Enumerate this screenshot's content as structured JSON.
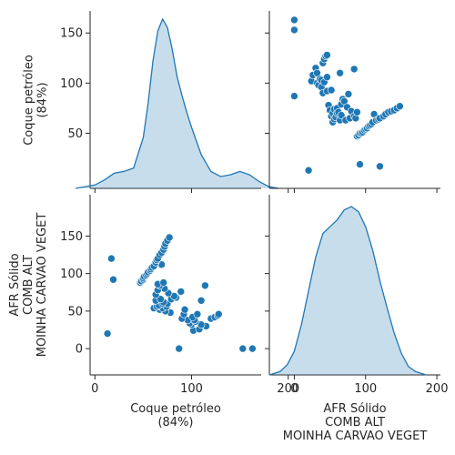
{
  "chart_data": {
    "type": "scatter",
    "kind": "pairplot",
    "variables": [
      "Coque petróleo\n(84%)",
      "AFR Sólido\nCOMB ALT\nMOINHA CARVAO VEGET"
    ],
    "axis_range": {
      "Coque petróleo\n(84%)": [
        -5,
        172
      ],
      "AFR Sólido\nCOMB ALT\nMOINHA CARVAO VEGET": [
        -35,
        205
      ]
    },
    "ticks": {
      "Coque petróleo\n(84%)": [
        0,
        50,
        100,
        150
      ],
      "AFR Sólido\nCOMB ALT\nMOINHA CARVAO VEGET": [
        0,
        100,
        200
      ]
    },
    "ticks_y": {
      "Coque petróleo\n(84%)": [
        50,
        100,
        150
      ],
      "AFR Sólido\nCOMB ALT\nMOINHA CARVAO VEGET": [
        0,
        50,
        100,
        150
      ]
    },
    "diagonal_kde": {
      "Coque petróleo\n(84%)": {
        "x": [
          -20,
          0,
          10,
          20,
          30,
          40,
          50,
          55,
          60,
          65,
          70,
          75,
          80,
          85,
          90,
          95,
          100,
          110,
          120,
          130,
          140,
          150,
          160,
          170,
          180,
          190
        ],
        "density_rel": [
          0.0,
          0.02,
          0.05,
          0.09,
          0.1,
          0.12,
          0.3,
          0.5,
          0.75,
          0.93,
          1.0,
          0.95,
          0.82,
          0.66,
          0.55,
          0.45,
          0.36,
          0.2,
          0.1,
          0.07,
          0.08,
          0.1,
          0.08,
          0.04,
          0.01,
          0.0
        ]
      },
      "AFR Sólido\nCOMB ALT\nMOINHA CARVAO VEGET": {
        "x": [
          -35,
          -20,
          -10,
          0,
          10,
          20,
          30,
          40,
          50,
          60,
          70,
          80,
          90,
          100,
          110,
          120,
          130,
          140,
          150,
          160,
          170,
          185
        ],
        "density_rel": [
          0.0,
          0.02,
          0.06,
          0.14,
          0.3,
          0.5,
          0.7,
          0.84,
          0.88,
          0.92,
          0.98,
          1.0,
          0.97,
          0.88,
          0.74,
          0.56,
          0.4,
          0.25,
          0.13,
          0.05,
          0.02,
          0.0
        ]
      }
    },
    "points": {
      "x": [
        0,
        0,
        0,
        20,
        24,
        26,
        30,
        32,
        32,
        34,
        36,
        38,
        38,
        40,
        40,
        42,
        42,
        44,
        46,
        46,
        46,
        48,
        50,
        52,
        52,
        54,
        54,
        56,
        56,
        58,
        60,
        60,
        62,
        64,
        64,
        66,
        66,
        68,
        70,
        72,
        74,
        76,
        78,
        80,
        84,
        84,
        86,
        88,
        88,
        90,
        90,
        92,
        94,
        96,
        98,
        100,
        102,
        104,
        106,
        108,
        110,
        112,
        115,
        118,
        120,
        125,
        128,
        132,
        136,
        140,
        144,
        148,
        92,
        120
      ],
      "y": [
        163,
        153,
        87,
        13,
        102,
        108,
        115,
        110,
        100,
        98,
        104,
        103,
        96,
        90,
        120,
        101,
        124,
        127,
        106,
        92,
        128,
        78,
        73,
        93,
        67,
        70,
        61,
        64,
        74,
        66,
        70,
        75,
        71,
        110,
        63,
        68,
        79,
        84,
        82,
        63,
        76,
        89,
        65,
        72,
        67,
        114,
        65,
        71,
        47,
        48,
        48,
        50,
        50,
        51,
        53,
        54,
        55,
        57,
        58,
        59,
        61,
        69,
        63,
        64,
        65,
        67,
        69,
        71,
        72,
        73,
        75,
        77,
        19,
        17
      ]
    }
  }
}
